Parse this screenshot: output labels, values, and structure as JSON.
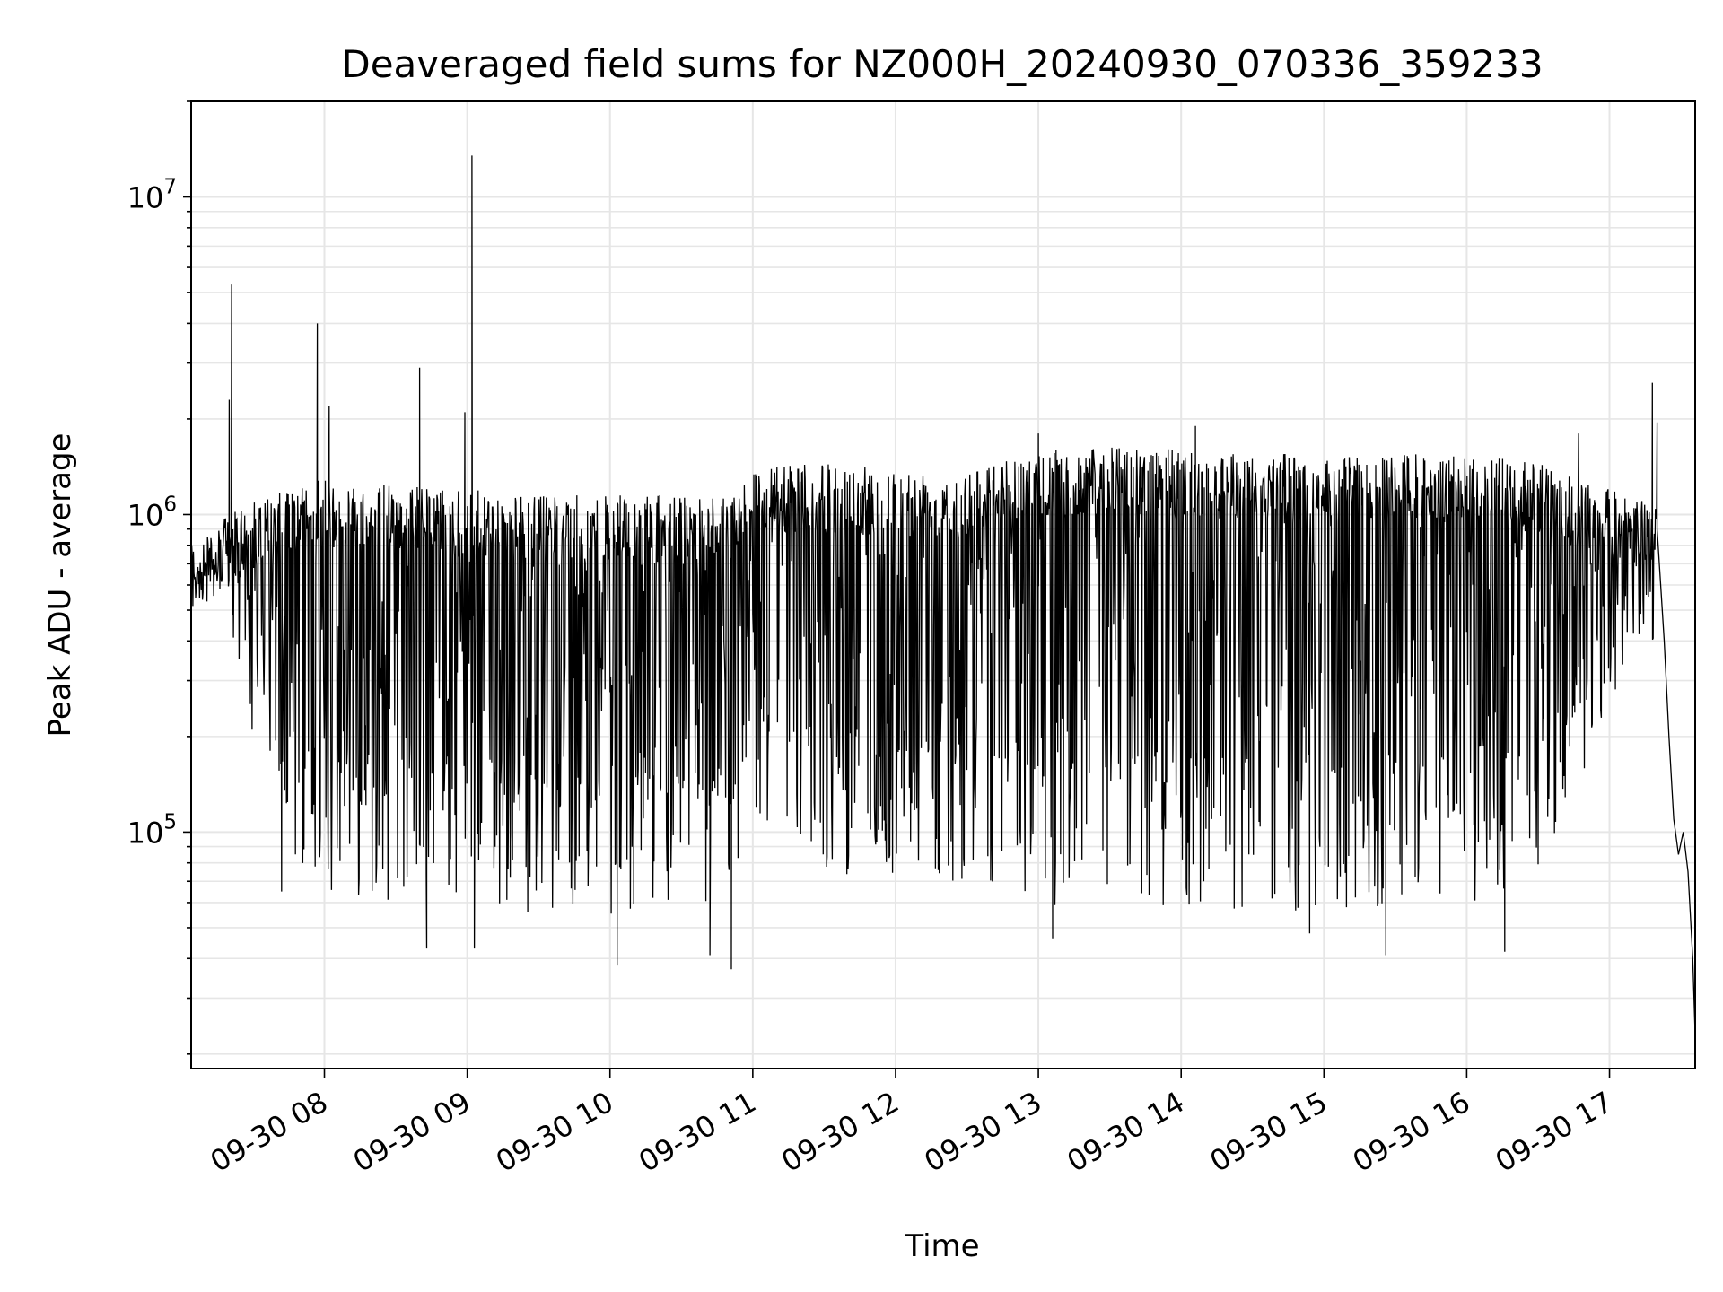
{
  "chart_data": {
    "type": "line",
    "title": "Deaveraged field sums for NZ000H_20240930_070336_359233",
    "xlabel": "Time",
    "ylabel": "Peak ADU - average",
    "yscale": "log",
    "ylim": [
      18000,
      20000000
    ],
    "xlim": [
      "2024-09-30 07:04",
      "2024-09-30 17:36"
    ],
    "grid": true,
    "line_color": "#000000",
    "grid_color": "#e6e6e6",
    "x_ticks": [
      {
        "at": "2024-09-30 08:00",
        "label": "09-30 08"
      },
      {
        "at": "2024-09-30 09:00",
        "label": "09-30 09"
      },
      {
        "at": "2024-09-30 10:00",
        "label": "09-30 10"
      },
      {
        "at": "2024-09-30 11:00",
        "label": "09-30 11"
      },
      {
        "at": "2024-09-30 12:00",
        "label": "09-30 12"
      },
      {
        "at": "2024-09-30 13:00",
        "label": "09-30 13"
      },
      {
        "at": "2024-09-30 14:00",
        "label": "09-30 14"
      },
      {
        "at": "2024-09-30 15:00",
        "label": "09-30 15"
      },
      {
        "at": "2024-09-30 16:00",
        "label": "09-30 16"
      },
      {
        "at": "2024-09-30 17:00",
        "label": "09-30 17"
      }
    ],
    "y_ticks": [
      {
        "value": 100000,
        "base": "10",
        "exp": "5"
      },
      {
        "value": 1000000,
        "base": "10",
        "exp": "6"
      },
      {
        "value": 10000000,
        "base": "10",
        "exp": "7"
      }
    ],
    "upper_envelope": {
      "x": [
        "2024-09-30 07:04",
        "2024-09-30 07:10",
        "2024-09-30 07:20",
        "2024-09-30 07:30",
        "2024-09-30 07:45",
        "2024-09-30 08:00",
        "2024-09-30 08:30",
        "2024-09-30 09:00",
        "2024-09-30 09:30",
        "2024-09-30 10:00",
        "2024-09-30 10:30",
        "2024-09-30 10:50",
        "2024-09-30 11:00",
        "2024-09-30 11:30",
        "2024-09-30 12:00",
        "2024-09-30 12:40",
        "2024-09-30 13:00",
        "2024-09-30 13:30",
        "2024-09-30 14:00",
        "2024-09-30 14:30",
        "2024-09-30 15:00",
        "2024-09-30 15:30",
        "2024-09-30 16:00",
        "2024-09-30 16:30",
        "2024-09-30 17:00",
        "2024-09-30 17:15"
      ],
      "y": [
        800000,
        850000,
        1000000,
        1100000,
        1200000,
        1300000,
        1250000,
        1200000,
        1150000,
        1150000,
        1150000,
        1200000,
        1400000,
        1450000,
        1400000,
        1450000,
        1600000,
        1650000,
        1600000,
        1600000,
        1500000,
        1550000,
        1550000,
        1450000,
        1200000,
        1100000
      ]
    },
    "lower_envelope": {
      "x": [
        "2024-09-30 07:04",
        "2024-09-30 07:15",
        "2024-09-30 07:30",
        "2024-09-30 07:45",
        "2024-09-30 08:00",
        "2024-09-30 08:30",
        "2024-09-30 09:00",
        "2024-09-30 09:30",
        "2024-09-30 10:00",
        "2024-09-30 10:30",
        "2024-09-30 10:50",
        "2024-09-30 11:00",
        "2024-09-30 11:30",
        "2024-09-30 12:00",
        "2024-09-30 12:40",
        "2024-09-30 13:00",
        "2024-09-30 13:30",
        "2024-09-30 14:00",
        "2024-09-30 14:30",
        "2024-09-30 15:00",
        "2024-09-30 15:30",
        "2024-09-30 16:00",
        "2024-09-30 16:30",
        "2024-09-30 17:00",
        "2024-09-30 17:15"
      ],
      "y": [
        500000,
        600000,
        200000,
        80000,
        65000,
        60000,
        58000,
        55000,
        55000,
        55000,
        60000,
        110000,
        75000,
        70000,
        70000,
        55000,
        55000,
        55000,
        55000,
        55000,
        55000,
        60000,
        65000,
        250000,
        400000
      ]
    },
    "spikes": [
      {
        "x": "2024-09-30 07:21",
        "y": 5300000
      },
      {
        "x": "2024-09-30 07:20",
        "y": 2300000
      },
      {
        "x": "2024-09-30 07:57",
        "y": 4000000
      },
      {
        "x": "2024-09-30 08:02",
        "y": 2200000
      },
      {
        "x": "2024-09-30 08:40",
        "y": 2900000
      },
      {
        "x": "2024-09-30 08:59",
        "y": 2100000
      },
      {
        "x": "2024-09-30 09:02",
        "y": 13500000
      },
      {
        "x": "2024-09-30 13:00",
        "y": 1800000
      },
      {
        "x": "2024-09-30 14:06",
        "y": 1900000
      },
      {
        "x": "2024-09-30 16:47",
        "y": 1800000
      },
      {
        "x": "2024-09-30 17:18",
        "y": 2600000
      },
      {
        "x": "2024-09-30 17:20",
        "y": 1950000
      }
    ],
    "dips": [
      {
        "x": "2024-09-30 07:42",
        "y": 65000
      },
      {
        "x": "2024-09-30 08:43",
        "y": 43000
      },
      {
        "x": "2024-09-30 09:03",
        "y": 43000
      },
      {
        "x": "2024-09-30 10:03",
        "y": 38000
      },
      {
        "x": "2024-09-30 10:42",
        "y": 41000
      },
      {
        "x": "2024-09-30 10:51",
        "y": 37000
      },
      {
        "x": "2024-09-30 13:06",
        "y": 46000
      },
      {
        "x": "2024-09-30 14:54",
        "y": 48000
      },
      {
        "x": "2024-09-30 15:26",
        "y": 41000
      },
      {
        "x": "2024-09-30 16:16",
        "y": 42000
      }
    ],
    "tail": {
      "x": [
        "2024-09-30 17:20",
        "2024-09-30 17:23",
        "2024-09-30 17:25",
        "2024-09-30 17:27",
        "2024-09-30 17:29",
        "2024-09-30 17:31",
        "2024-09-30 17:33",
        "2024-09-30 17:35",
        "2024-09-30 17:36"
      ],
      "y": [
        900000,
        400000,
        200000,
        110000,
        85000,
        100000,
        75000,
        40000,
        23000
      ]
    }
  }
}
